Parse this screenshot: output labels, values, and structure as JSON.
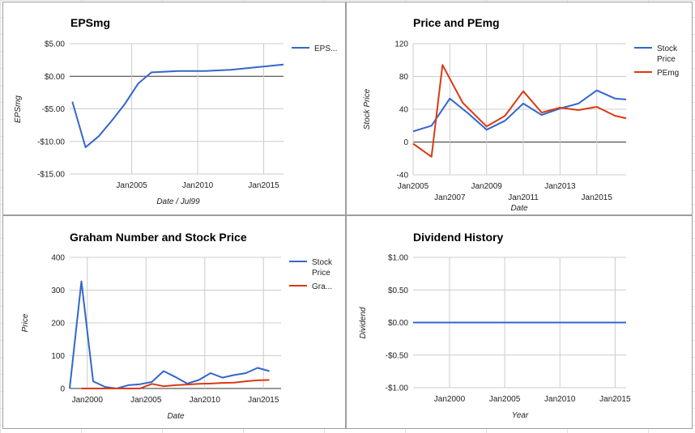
{
  "chart_data": [
    {
      "id": "eps",
      "type": "line",
      "title": "EPSmg",
      "xlabel": "Date / Jul99",
      "ylabel": "EPSmg",
      "ylim": [
        -15,
        5
      ],
      "yticks": [
        5,
        0,
        -5,
        -10,
        -15
      ],
      "ytick_labels": [
        "$5.00",
        "$0.00",
        "-$5.00",
        "-$10.00",
        "-$15.00"
      ],
      "xlim": [
        2000.3,
        2016.5
      ],
      "xticks": [
        2005,
        2010,
        2015
      ],
      "xtick_labels": [
        "Jan2005",
        "Jan2010",
        "Jan2015"
      ],
      "grid": true,
      "legend_position": "right",
      "series": [
        {
          "name": "EPS...",
          "color": "#3366cc",
          "points": [
            [
              2000.5,
              -3.9
            ],
            [
              2001.5,
              -10.9
            ],
            [
              2002.5,
              -9.2
            ],
            [
              2003.5,
              -6.8
            ],
            [
              2004.5,
              -4.2
            ],
            [
              2005.5,
              -1.1
            ],
            [
              2006.5,
              0.6
            ],
            [
              2007.5,
              0.7
            ],
            [
              2008.5,
              0.8
            ],
            [
              2009.5,
              0.8
            ],
            [
              2010.5,
              0.8
            ],
            [
              2011.5,
              0.9
            ],
            [
              2012.5,
              1.0
            ],
            [
              2013.5,
              1.2
            ],
            [
              2014.5,
              1.4
            ],
            [
              2015.5,
              1.6
            ],
            [
              2016.5,
              1.8
            ]
          ]
        }
      ]
    },
    {
      "id": "price-pe",
      "type": "line",
      "title": "Price and PEmg",
      "xlabel": "Date",
      "ylabel": "Stock Price",
      "ylim": [
        -40,
        120
      ],
      "yticks": [
        120,
        80,
        40,
        0,
        -40
      ],
      "ytick_labels": [
        "120",
        "80",
        "40",
        "0",
        "-40"
      ],
      "xlim": [
        2005,
        2016.6
      ],
      "xticks": [
        2005,
        2007,
        2009,
        2011,
        2013,
        2015
      ],
      "xtick_labels": [
        "Jan2005",
        "Jan2007",
        "Jan2009",
        "Jan2011",
        "Jan2013",
        "Jan2015"
      ],
      "grid": true,
      "legend_position": "right",
      "series": [
        {
          "name": "Stock Price",
          "color": "#3366cc",
          "points": [
            [
              2005,
              13
            ],
            [
              2006,
              20
            ],
            [
              2007,
              53
            ],
            [
              2008,
              35
            ],
            [
              2009,
              15
            ],
            [
              2010,
              26
            ],
            [
              2011,
              47
            ],
            [
              2012,
              33
            ],
            [
              2013,
              41
            ],
            [
              2014,
              47
            ],
            [
              2015,
              63
            ],
            [
              2016,
              53
            ],
            [
              2016.6,
              52
            ]
          ]
        },
        {
          "name": "PEmg",
          "color": "#dc3912",
          "points": [
            [
              2005,
              -2
            ],
            [
              2006,
              -18
            ],
            [
              2006.6,
              94
            ],
            [
              2007.7,
              48
            ],
            [
              2009,
              19
            ],
            [
              2010,
              32
            ],
            [
              2011,
              62
            ],
            [
              2012,
              36
            ],
            [
              2013,
              42
            ],
            [
              2014,
              39
            ],
            [
              2015,
              43
            ],
            [
              2016,
              32
            ],
            [
              2016.6,
              29
            ]
          ]
        }
      ]
    },
    {
      "id": "graham",
      "type": "line",
      "title": "Graham Number and Stock Price",
      "xlabel": "Date",
      "ylabel": "Price",
      "ylim": [
        0,
        400
      ],
      "yticks": [
        400,
        300,
        200,
        100,
        0
      ],
      "ytick_labels": [
        "400",
        "300",
        "200",
        "100",
        "0"
      ],
      "xlim": [
        1998.5,
        2016.5
      ],
      "xticks": [
        2000,
        2005,
        2010,
        2015
      ],
      "xtick_labels": [
        "Jan2000",
        "Jan2005",
        "Jan2010",
        "Jan2015"
      ],
      "grid": true,
      "legend_position": "right",
      "series": [
        {
          "name": "Stock Price",
          "color": "#3366cc",
          "points": [
            [
              1998.5,
              0
            ],
            [
              1999.5,
              327
            ],
            [
              2000.5,
              22
            ],
            [
              2001.5,
              5
            ],
            [
              2002.5,
              0
            ],
            [
              2003.5,
              10
            ],
            [
              2004.5,
              13
            ],
            [
              2005.5,
              20
            ],
            [
              2006.5,
              53
            ],
            [
              2007.5,
              35
            ],
            [
              2008.5,
              15
            ],
            [
              2009.5,
              26
            ],
            [
              2010.5,
              47
            ],
            [
              2011.5,
              33
            ],
            [
              2012.5,
              41
            ],
            [
              2013.5,
              47
            ],
            [
              2014.5,
              63
            ],
            [
              2015.5,
              53
            ]
          ]
        },
        {
          "name": "Gra...",
          "color": "#dc3912",
          "points": [
            [
              1999.5,
              0
            ],
            [
              2000.5,
              0
            ],
            [
              2001.5,
              0
            ],
            [
              2002.5,
              0
            ],
            [
              2003.5,
              0
            ],
            [
              2004.5,
              0
            ],
            [
              2005.5,
              14
            ],
            [
              2006.5,
              7
            ],
            [
              2007.5,
              10
            ],
            [
              2008.5,
              12
            ],
            [
              2009.5,
              14
            ],
            [
              2010.5,
              15
            ],
            [
              2011.5,
              17
            ],
            [
              2012.5,
              18
            ],
            [
              2013.5,
              22
            ],
            [
              2014.5,
              25
            ],
            [
              2015.5,
              26
            ]
          ]
        }
      ]
    },
    {
      "id": "dividend",
      "type": "line",
      "title": "Dividend History",
      "xlabel": "Year",
      "ylabel": "Dividend",
      "ylim": [
        -1,
        1
      ],
      "yticks": [
        1,
        0.5,
        0,
        -0.5,
        -1
      ],
      "ytick_labels": [
        "$1.00",
        "$0.50",
        "$0.00",
        "-$0.50",
        "-$1.00"
      ],
      "xlim": [
        1996.7,
        2016
      ],
      "xticks": [
        2000,
        2005,
        2010,
        2015
      ],
      "xtick_labels": [
        "Jan2000",
        "Jan2005",
        "Jan2010",
        "Jan2015"
      ],
      "grid": true,
      "legend_position": "none",
      "series": [
        {
          "name": "",
          "color": "#3366cc",
          "points": [
            [
              1996.7,
              0
            ],
            [
              2016,
              0
            ]
          ]
        }
      ]
    }
  ]
}
